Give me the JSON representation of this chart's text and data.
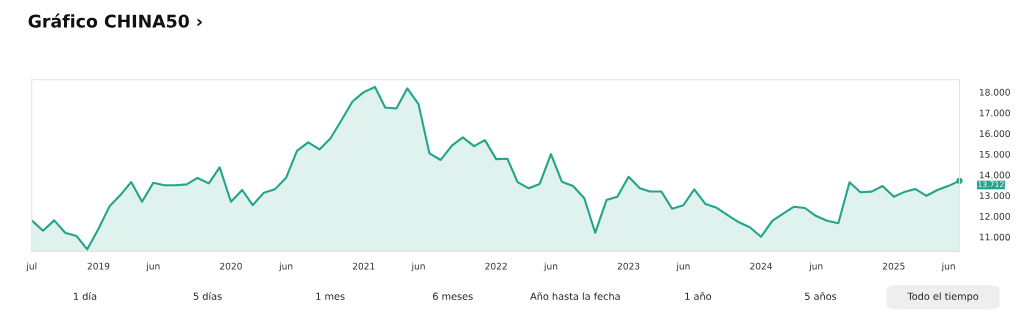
{
  "chart_data": {
    "type": "area",
    "title": "Gráfico CHINA50 ›",
    "x": [
      "2018-07",
      "2018-08",
      "2018-09",
      "2018-10",
      "2018-11",
      "2018-12",
      "2019-01",
      "2019-02",
      "2019-03",
      "2019-04",
      "2019-05",
      "2019-06",
      "2019-07",
      "2019-08",
      "2019-09",
      "2019-10",
      "2019-11",
      "2019-12",
      "2020-01",
      "2020-02",
      "2020-03",
      "2020-04",
      "2020-05",
      "2020-06",
      "2020-07",
      "2020-08",
      "2020-09",
      "2020-10",
      "2020-11",
      "2020-12",
      "2021-01",
      "2021-02",
      "2021-03",
      "2021-04",
      "2021-05",
      "2021-06",
      "2021-07",
      "2021-08",
      "2021-09",
      "2021-10",
      "2021-11",
      "2021-12",
      "2022-01",
      "2022-02",
      "2022-03",
      "2022-04",
      "2022-05",
      "2022-06",
      "2022-07",
      "2022-08",
      "2022-09",
      "2022-10",
      "2022-11",
      "2022-12",
      "2023-01",
      "2023-02",
      "2023-03",
      "2023-04",
      "2023-05",
      "2023-06",
      "2023-07",
      "2023-08",
      "2023-09",
      "2023-10",
      "2023-11",
      "2023-12",
      "2024-01",
      "2024-02",
      "2024-03",
      "2024-04",
      "2024-05",
      "2024-06",
      "2024-07",
      "2024-08",
      "2024-09",
      "2024-10",
      "2024-11",
      "2024-12",
      "2025-01",
      "2025-02",
      "2025-03",
      "2025-04",
      "2025-05",
      "2025-06",
      "2025-07"
    ],
    "series": [
      {
        "color": "#22a58a",
        "values": [
          11800,
          11300,
          11800,
          11200,
          11050,
          10400,
          11400,
          12500,
          13000,
          13650,
          12700,
          13620,
          13500,
          13500,
          13540,
          13850,
          13590,
          14360,
          12700,
          13270,
          12540,
          13140,
          13300,
          13860,
          15160,
          15570,
          15230,
          15760,
          16650,
          17550,
          18000,
          18250,
          17260,
          17210,
          18180,
          17420,
          15040,
          14720,
          15410,
          15810,
          15390,
          15680,
          14760,
          14780,
          13650,
          13350,
          13560,
          15000,
          13670,
          13460,
          12870,
          11200,
          12780,
          12940,
          13910,
          13350,
          13200,
          13200,
          12360,
          12530,
          13300,
          12590,
          12410,
          12060,
          11710,
          11470,
          11010,
          11780,
          12110,
          12460,
          12400,
          12010,
          11780,
          11660,
          13640,
          13160,
          13190,
          13460,
          12940,
          13190,
          13320,
          12990,
          13270,
          13470,
          13712
        ]
      }
    ],
    "xlim": [
      "2018-07",
      "2025-07"
    ],
    "xticks": [
      {
        "value": "2018-07",
        "label": "jul"
      },
      {
        "value": "2019-01",
        "label": "2019"
      },
      {
        "value": "2019-06",
        "label": "jun"
      },
      {
        "value": "2020-01",
        "label": "2020"
      },
      {
        "value": "2020-06",
        "label": "jun"
      },
      {
        "value": "2021-01",
        "label": "2021"
      },
      {
        "value": "2021-06",
        "label": "jun"
      },
      {
        "value": "2022-01",
        "label": "2022"
      },
      {
        "value": "2022-06",
        "label": "jun"
      },
      {
        "value": "2023-01",
        "label": "2023"
      },
      {
        "value": "2023-06",
        "label": "jun"
      },
      {
        "value": "2024-01",
        "label": "2024"
      },
      {
        "value": "2024-06",
        "label": "jun"
      },
      {
        "value": "2025-01",
        "label": "2025"
      },
      {
        "value": "2025-06",
        "label": "jun"
      }
    ],
    "ylim": [
      10300,
      18600
    ],
    "yticks": [
      {
        "value": 11000,
        "label": "11.000"
      },
      {
        "value": 12000,
        "label": "12.000"
      },
      {
        "value": 13000,
        "label": "13.000"
      },
      {
        "value": 14000,
        "label": "14.000"
      },
      {
        "value": 15000,
        "label": "15.000"
      },
      {
        "value": 16000,
        "label": "16.000"
      },
      {
        "value": 17000,
        "label": "17.000"
      },
      {
        "value": 18000,
        "label": "18.000"
      }
    ],
    "grid": false,
    "legend": false,
    "annotations": [
      {
        "text": "13.712",
        "x": "2025-07",
        "y": 13712
      },
      "1 día",
      "5 días",
      "1 mes",
      "6 meses",
      "Año hasta la fecha",
      "1 año",
      "5 años",
      "Todo el tiempo"
    ]
  }
}
